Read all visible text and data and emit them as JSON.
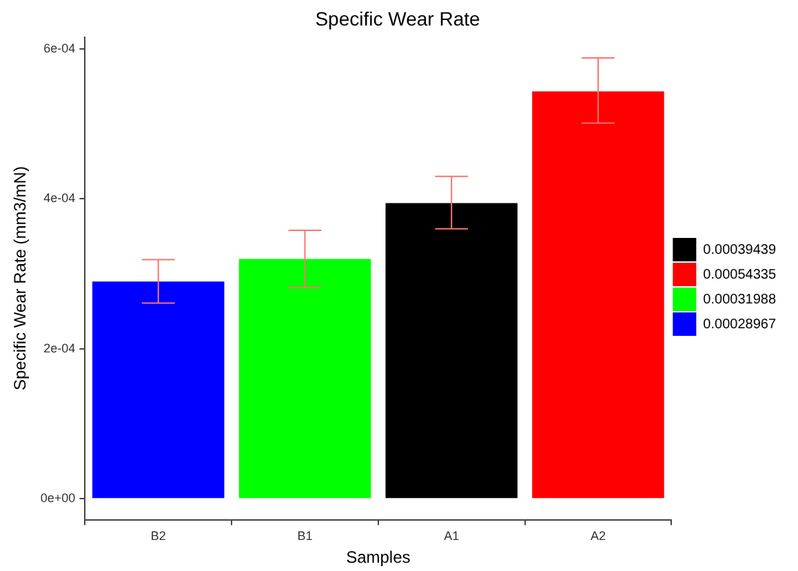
{
  "chart_data": {
    "type": "bar",
    "title": "Specific Wear Rate",
    "xlabel": "Samples",
    "ylabel": "Specific Wear Rate (mm3/mN)",
    "categories": [
      "B2",
      "B1",
      "A1",
      "A2"
    ],
    "series": [
      {
        "name": "0.00039439",
        "color": "#000000",
        "values": [
          null,
          null,
          0.00039439,
          null
        ],
        "errors": [
          null,
          null,
          [
            0.00036,
            0.00043
          ],
          null
        ]
      },
      {
        "name": "0.00054335",
        "color": "#ff0000",
        "values": [
          null,
          null,
          null,
          0.00054335
        ],
        "errors": [
          null,
          null,
          null,
          [
            0.000501,
            0.000588
          ]
        ]
      },
      {
        "name": "0.00031988",
        "color": "#00ff00",
        "values": [
          null,
          0.00031988,
          null,
          null
        ],
        "errors": [
          null,
          [
            0.000282,
            0.000358
          ],
          null,
          null
        ]
      },
      {
        "name": "0.00028967",
        "color": "#0000ff",
        "values": [
          0.00028967,
          null,
          null,
          null
        ],
        "errors": [
          [
            0.000261,
            0.000319
          ],
          null,
          null,
          null
        ]
      }
    ],
    "ylim": [
      -2.8e-05,
      0.000616
    ],
    "yticks": [
      {
        "value": 0,
        "label": "0e+00"
      },
      {
        "value": 0.0002,
        "label": "2e-04"
      },
      {
        "value": 0.0004,
        "label": "4e-04"
      },
      {
        "value": 0.0006,
        "label": "6e-04"
      }
    ],
    "grid": false,
    "legend": "right"
  }
}
